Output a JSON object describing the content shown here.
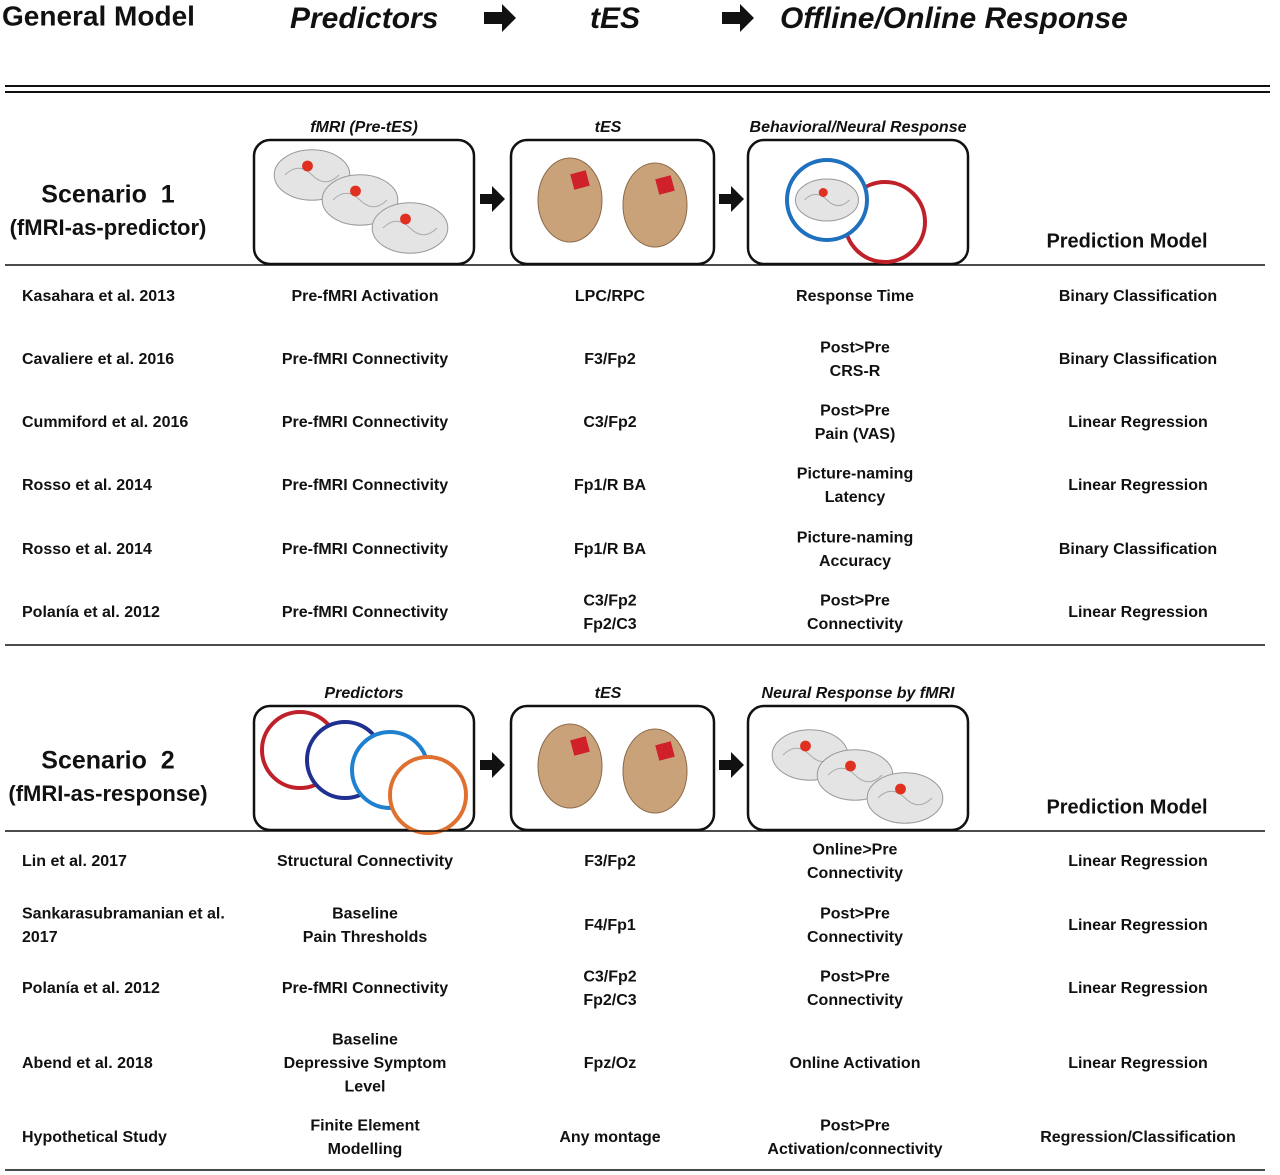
{
  "header": {
    "title": "General Model",
    "steps": [
      "Predictors",
      "tES",
      "Offline/Online Response"
    ]
  },
  "scenarios": [
    {
      "title": "Scenario  1",
      "subtitle": "(fMRI-as-predictor)",
      "panels": [
        "fMRI (Pre-tES)",
        "tES",
        "Behavioral/Neural Response"
      ],
      "model_header": "Prediction Model",
      "rows": [
        [
          [
            "Kasahara et al. 2013"
          ],
          [
            "Pre-fMRI Activation"
          ],
          [
            "LPC/RPC"
          ],
          [
            "Response Time"
          ],
          [
            "Binary Classification"
          ]
        ],
        [
          [
            "Cavaliere et al. 2016"
          ],
          [
            "Pre-fMRI Connectivity"
          ],
          [
            "F3/Fp2"
          ],
          [
            "Post>Pre",
            "CRS-R"
          ],
          [
            "Binary Classification"
          ]
        ],
        [
          [
            "Cummiford et al. 2016"
          ],
          [
            "Pre-fMRI Connectivity"
          ],
          [
            "C3/Fp2"
          ],
          [
            "Post>Pre",
            "Pain (VAS)"
          ],
          [
            "Linear Regression"
          ]
        ],
        [
          [
            "Rosso et al. 2014"
          ],
          [
            "Pre-fMRI Connectivity"
          ],
          [
            "Fp1/R BA"
          ],
          [
            "Picture-naming",
            "Latency"
          ],
          [
            "Linear Regression"
          ]
        ],
        [
          [
            "Rosso et al. 2014"
          ],
          [
            "Pre-fMRI Connectivity"
          ],
          [
            "Fp1/R BA"
          ],
          [
            "Picture-naming",
            "Accuracy"
          ],
          [
            "Binary Classification"
          ]
        ],
        [
          [
            "Polanía et al. 2012"
          ],
          [
            "Pre-fMRI Connectivity"
          ],
          [
            "C3/Fp2",
            "Fp2/C3"
          ],
          [
            "Post>Pre",
            "Connectivity"
          ],
          [
            "Linear Regression"
          ]
        ]
      ]
    },
    {
      "title": "Scenario  2",
      "subtitle": "(fMRI-as-response)",
      "panels": [
        "Predictors",
        "tES",
        "Neural Response by fMRI"
      ],
      "model_header": "Prediction Model",
      "rows": [
        [
          [
            "Lin et al. 2017"
          ],
          [
            "Structural Connectivity"
          ],
          [
            "F3/Fp2"
          ],
          [
            "Online>Pre",
            "Connectivity"
          ],
          [
            "Linear Regression"
          ]
        ],
        [
          [
            "Sankarasubramanian et al.",
            "2017"
          ],
          [
            "Baseline",
            "Pain Thresholds"
          ],
          [
            "F4/Fp1"
          ],
          [
            "Post>Pre",
            "Connectivity"
          ],
          [
            "Linear Regression"
          ]
        ],
        [
          [
            "Polanía et al. 2012"
          ],
          [
            "Pre-fMRI Connectivity"
          ],
          [
            "C3/Fp2",
            "Fp2/C3"
          ],
          [
            "Post>Pre",
            "Connectivity"
          ],
          [
            "Linear Regression"
          ]
        ],
        [
          [
            "Abend et al. 2018"
          ],
          [
            "Baseline",
            "Depressive Symptom",
            "Level"
          ],
          [
            "Fpz/Oz"
          ],
          [
            "Online Activation"
          ],
          [
            "Linear Regression"
          ]
        ],
        [
          [
            "Hypothetical Study"
          ],
          [
            "Finite Element",
            "Modelling"
          ],
          [
            "Any montage"
          ],
          [
            "Post>Pre",
            "Activation/connectivity"
          ],
          [
            "Regression/Classification"
          ]
        ]
      ]
    }
  ]
}
